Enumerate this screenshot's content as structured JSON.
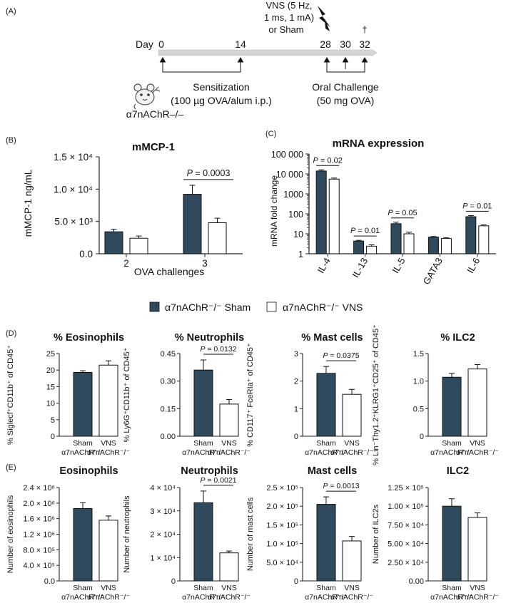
{
  "colors": {
    "sham": "#2e4a5c",
    "vns": "#ffffff",
    "axis": "#222222",
    "timeline": "#d4d4d4"
  },
  "panel_a": {
    "label": "(A)",
    "vns_line1": "VNS (5 Hz,",
    "vns_line2": "1 ms, 1 mA)",
    "vns_line3": "or Sham",
    "dagger": "†",
    "day_label": "Day",
    "days": [
      "0",
      "14",
      "28",
      "30",
      "32"
    ],
    "sensitization_line1": "Sensitization",
    "sensitization_line2": "(100 µg OVA/alum i.p.)",
    "challenge_line1": "Oral Challenge",
    "challenge_line2": "(50 mg OVA)",
    "mouse_label": "α7nAChR–/–"
  },
  "legend": {
    "sham": "α7nAChR⁻/⁻ Sham",
    "vns": "α7nAChR⁻/⁻ VNS"
  },
  "chart_data": [
    {
      "id": "B",
      "type": "bar",
      "panel_label": "(B)",
      "title": "mMCP-1",
      "ylabel": "mMCP-1 ng/mL",
      "xlabel": "OVA challenges",
      "categories": [
        "2",
        "3"
      ],
      "ylim": [
        0,
        15000
      ],
      "yticks": [
        0,
        5000,
        10000,
        15000
      ],
      "ytick_labels": [
        "0.0",
        "5.0 × 10³",
        "1.0 × 10⁴",
        "1.5 × 10⁴"
      ],
      "series": [
        {
          "name": "α7nAChR⁻/⁻ Sham",
          "values": [
            3400,
            9200
          ],
          "errors": [
            400,
            1400
          ]
        },
        {
          "name": "α7nAChR⁻/⁻ VNS",
          "values": [
            2400,
            4800
          ],
          "errors": [
            350,
            700
          ]
        }
      ],
      "annotations": [
        {
          "category": "3",
          "text": "P = 0.0003"
        }
      ]
    },
    {
      "id": "C",
      "type": "bar",
      "panel_label": "(C)",
      "title": "mRNA expression",
      "ylabel": "mRNA fold change",
      "yscale": "log",
      "categories": [
        "IL-4",
        "IL-13",
        "IL-5",
        "GATA3",
        "IL-6"
      ],
      "ylim": [
        1,
        100000
      ],
      "yticks": [
        1,
        10,
        100,
        1000,
        10000,
        100000
      ],
      "ytick_labels": [
        "1",
        "10",
        "100",
        "1000",
        "10 000",
        "100 000"
      ],
      "series": [
        {
          "name": "α7nAChR⁻/⁻ Sham",
          "values": [
            14000,
            4.3,
            32,
            6.8,
            72
          ],
          "errors": [
            2000,
            0.4,
            6,
            0.5,
            10
          ]
        },
        {
          "name": "α7nAChR⁻/⁻ VNS",
          "values": [
            5500,
            2.4,
            10,
            5.8,
            25
          ],
          "errors": [
            700,
            0.4,
            2,
            0.5,
            3
          ]
        }
      ],
      "annotations": [
        {
          "category": "IL-4",
          "text": "P = 0.02"
        },
        {
          "category": "IL-13",
          "text": "P = 0.01"
        },
        {
          "category": "IL-5",
          "text": "P = 0.05"
        },
        {
          "category": "IL-6",
          "text": "P = 0.01"
        }
      ]
    },
    {
      "id": "D1",
      "type": "bar",
      "panel_label": "(D)",
      "title": "% Eosinophils",
      "ylabel": "% Siglecf⁺CD11b⁺ of CD45⁺",
      "categories": [
        "Sham",
        "VNS"
      ],
      "category_sub": [
        "α7nAChR⁻/⁻",
        "α7nAChR⁻/⁻"
      ],
      "ylim": [
        0,
        25
      ],
      "yticks": [
        0,
        5,
        10,
        15,
        20,
        25
      ],
      "ytick_labels": [
        "0",
        "5",
        "10",
        "15",
        "20",
        "25"
      ],
      "values": [
        19.3,
        21.5
      ],
      "errors": [
        0.5,
        1.3
      ],
      "annotation": ""
    },
    {
      "id": "D2",
      "type": "bar",
      "title": "% Neutrophils",
      "ylabel": "% Ly6G⁺CD11b⁺ of CD45⁺",
      "categories": [
        "Sham",
        "VNS"
      ],
      "category_sub": [
        "α7nAChR⁻/⁻",
        "α7nAChR⁻/⁻"
      ],
      "ylim": [
        0,
        0.45
      ],
      "yticks": [
        0,
        0.15,
        0.3,
        0.45
      ],
      "ytick_labels": [
        "0.00",
        "0.15",
        "0.30",
        "0.45"
      ],
      "values": [
        0.36,
        0.175
      ],
      "errors": [
        0.055,
        0.025
      ],
      "annotation": "P = 0.0132"
    },
    {
      "id": "D3",
      "type": "bar",
      "title": "% Mast cells",
      "ylabel": "% CD117⁺ FceRIa⁺ of CD45⁺",
      "categories": [
        "Sham",
        "VNS"
      ],
      "category_sub": [
        "α7nAChR⁻/⁻",
        "α7nAChR⁻/⁻"
      ],
      "ylim": [
        0,
        3
      ],
      "yticks": [
        0,
        1,
        2,
        3
      ],
      "ytick_labels": [
        "0",
        "1",
        "2",
        "3"
      ],
      "values": [
        2.28,
        1.52
      ],
      "errors": [
        0.25,
        0.18
      ],
      "annotation": "P = 0.0375"
    },
    {
      "id": "D4",
      "type": "bar",
      "title": "% ILC2",
      "ylabel": "% Lin⁻Thy1.2⁺KLRG1⁺CD25⁺ of CD45⁺",
      "categories": [
        "Sham",
        "VNS"
      ],
      "category_sub": [
        "α7nAChR⁻/⁻",
        "α7nAChR⁻/⁻"
      ],
      "ylim": [
        0,
        1.5
      ],
      "yticks": [
        0,
        0.5,
        1.0,
        1.5
      ],
      "ytick_labels": [
        "0",
        "0.5",
        "1.0",
        "1.5"
      ],
      "values": [
        1.07,
        1.22
      ],
      "errors": [
        0.07,
        0.08
      ],
      "annotation": ""
    },
    {
      "id": "E1",
      "type": "bar",
      "panel_label": "(E)",
      "title": "Eosinophils",
      "ylabel": "Number of eosinophils",
      "categories": [
        "Sham",
        "VNS"
      ],
      "category_sub": [
        "α7nAChR⁻/⁻",
        "α7nAChR⁻/⁻"
      ],
      "ylim": [
        0,
        2400000
      ],
      "yticks": [
        0,
        400000,
        800000,
        1200000,
        1600000,
        2000000,
        2400000
      ],
      "ytick_labels": [
        "0.0",
        "4.0 × 10⁵",
        "8.0 × 10⁵",
        "1.2 × 10⁶",
        "1.6 × 10⁶",
        "2.0 × 10⁶",
        "2.4 × 10⁶"
      ],
      "values": [
        1860000,
        1560000
      ],
      "errors": [
        150000,
        110000
      ],
      "annotation": ""
    },
    {
      "id": "E2",
      "type": "bar",
      "title": "Neutrophils",
      "ylabel": "Number of neutrophils",
      "categories": [
        "Sham",
        "VNS"
      ],
      "category_sub": [
        "α7nAChR⁻/⁻",
        "α7nAChR⁻/⁻"
      ],
      "ylim": [
        0,
        40000
      ],
      "yticks": [
        0,
        10000,
        20000,
        30000,
        40000
      ],
      "ytick_labels": [
        "0",
        "1 × 10⁴",
        "2 × 10⁴",
        "3 × 10⁴",
        "4 × 10⁴"
      ],
      "values": [
        33500,
        12000
      ],
      "errors": [
        5000,
        800
      ],
      "annotation": "P = 0.0021"
    },
    {
      "id": "E3",
      "type": "bar",
      "title": "Mast cells",
      "ylabel": "Number of mast cells",
      "categories": [
        "Sham",
        "VNS"
      ],
      "category_sub": [
        "α7nAChR⁻/⁻",
        "α7nAChR⁻/⁻"
      ],
      "ylim": [
        0,
        250000
      ],
      "yticks": [
        0,
        50000,
        100000,
        150000,
        200000,
        250000
      ],
      "ytick_labels": [
        "0",
        "5.0 × 10⁴",
        "1.0 × 10⁵",
        "1.5 × 10⁵",
        "2.0 × 10⁵",
        "2.5 × 10⁵"
      ],
      "values": [
        205000,
        107000
      ],
      "errors": [
        20000,
        12000
      ],
      "annotation": "P = 0.0013"
    },
    {
      "id": "E4",
      "type": "bar",
      "title": "ILC2",
      "ylabel": "Number of ILC2s",
      "categories": [
        "Sham",
        "VNS"
      ],
      "category_sub": [
        "α7nAChR⁻/⁻",
        "α7nAChR⁻/⁻"
      ],
      "ylim": [
        0,
        125000
      ],
      "yticks": [
        0,
        25000,
        50000,
        75000,
        100000,
        125000
      ],
      "ytick_labels": [
        "0.00",
        "2.50 × 10⁴",
        "5.00 × 10⁴",
        "7.50 × 10⁴",
        "1.00 × 10⁵",
        "1.25 × 10⁵"
      ],
      "values": [
        100000,
        85000
      ],
      "errors": [
        10000,
        6000
      ],
      "annotation": ""
    }
  ]
}
